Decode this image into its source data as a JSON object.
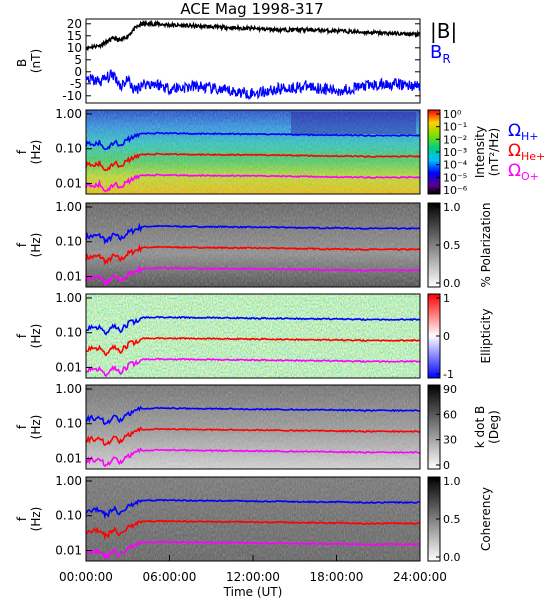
{
  "title": "ACE Mag 1998-317",
  "colors": {
    "B_total": "#000000",
    "B_R": "#0000ff",
    "H_plus": "#0000ff",
    "He_plus": "#ff0000",
    "O_plus": "#ff00ff"
  },
  "chart_data": [
    {
      "type": "line",
      "panel": "magnetic-field",
      "ylabel": "B\n(nT)",
      "ylim": [
        -13,
        22
      ],
      "yticks": [
        "20",
        "15",
        "10",
        "5",
        "0",
        "-5",
        "-10"
      ],
      "xlim": [
        0,
        24
      ],
      "series": [
        {
          "name": "|B|",
          "x": [
            0,
            1,
            2,
            2.5,
            3,
            3.5,
            4,
            5,
            6,
            8,
            10,
            12,
            14,
            16,
            18,
            20,
            22,
            24
          ],
          "y": [
            10,
            11,
            14,
            13,
            15,
            18,
            20,
            20,
            19.5,
            19,
            18.5,
            18,
            17.5,
            17.5,
            17,
            16.5,
            16,
            15.5
          ]
        },
        {
          "name": "B",
          "subscript": "R",
          "x": [
            0,
            1,
            2,
            2.5,
            3,
            3.5,
            4,
            5,
            6,
            8,
            10,
            12,
            14,
            16,
            18,
            20,
            22,
            24
          ],
          "y": [
            -3,
            -4,
            -1,
            -6,
            -3,
            -8,
            -5,
            -5,
            -7,
            -6,
            -8,
            -9,
            -7,
            -6,
            -8,
            -6,
            -5,
            -6
          ]
        }
      ],
      "legend": [
        "|B|",
        "B_R"
      ]
    },
    {
      "type": "heatmap",
      "panel": "intensity",
      "ylabel": "f\n(Hz)",
      "yticks": [
        "1.00",
        "0.10",
        "0.01"
      ],
      "colorbar_label": "Intensity\n(nT²/Hz)",
      "colorbar_ticks": [
        "10⁰",
        "10⁻¹",
        "10⁻²",
        "10⁻³",
        "10⁻⁴",
        "10⁻⁵",
        "10⁻⁶"
      ]
    },
    {
      "type": "heatmap",
      "panel": "polarization",
      "ylabel": "f\n(Hz)",
      "yticks": [
        "1.00",
        "0.10",
        "0.01"
      ],
      "colorbar_label": "% Polarization",
      "colorbar_ticks": [
        "1.0",
        "0.5",
        "0.0"
      ]
    },
    {
      "type": "heatmap",
      "panel": "ellipticity",
      "ylabel": "f\n(Hz)",
      "yticks": [
        "1.00",
        "0.10",
        "0.01"
      ],
      "colorbar_label": "Ellipticity",
      "colorbar_ticks": [
        "1",
        "0",
        "-1"
      ]
    },
    {
      "type": "heatmap",
      "panel": "k-dot-b",
      "ylabel": "f\n(Hz)",
      "yticks": [
        "1.00",
        "0.10",
        "0.01"
      ],
      "colorbar_label": "k dot B\n(Deg)",
      "colorbar_ticks": [
        "90",
        "60",
        "30",
        "0"
      ]
    },
    {
      "type": "heatmap",
      "panel": "coherency",
      "ylabel": "f\n(Hz)",
      "yticks": [
        "1.00",
        "0.10",
        "0.01"
      ],
      "colorbar_label": "Coherency",
      "colorbar_ticks": [
        "1.0",
        "0.5",
        "0.0"
      ]
    }
  ],
  "gyro_lines": {
    "x": [
      0,
      1,
      1.5,
      2,
      2.5,
      3,
      3.5,
      4,
      5,
      6,
      8,
      10,
      12,
      14,
      16,
      18,
      20,
      22,
      24
    ],
    "H_plus_hz": [
      0.14,
      0.15,
      0.1,
      0.16,
      0.12,
      0.18,
      0.22,
      0.27,
      0.28,
      0.28,
      0.27,
      0.27,
      0.26,
      0.26,
      0.25,
      0.25,
      0.24,
      0.24,
      0.24
    ],
    "He_plus_hz": [
      0.035,
      0.038,
      0.025,
      0.04,
      0.03,
      0.045,
      0.055,
      0.068,
      0.07,
      0.07,
      0.068,
      0.067,
      0.066,
      0.065,
      0.063,
      0.062,
      0.06,
      0.06,
      0.06
    ],
    "O_plus_hz": [
      0.009,
      0.0095,
      0.0063,
      0.01,
      0.0075,
      0.011,
      0.014,
      0.017,
      0.0175,
      0.0175,
      0.017,
      0.0168,
      0.0165,
      0.0162,
      0.0158,
      0.0155,
      0.015,
      0.015,
      0.015
    ]
  },
  "gyro_legend": [
    {
      "symbol": "Ω",
      "sub": "H+"
    },
    {
      "symbol": "Ω",
      "sub": "He+"
    },
    {
      "symbol": "Ω",
      "sub": "O+"
    }
  ],
  "x_axis": {
    "label": "Time (UT)",
    "ticks": [
      "00:00:00",
      "06:00:00",
      "12:00:00",
      "18:00:00",
      "24:00:00"
    ]
  }
}
